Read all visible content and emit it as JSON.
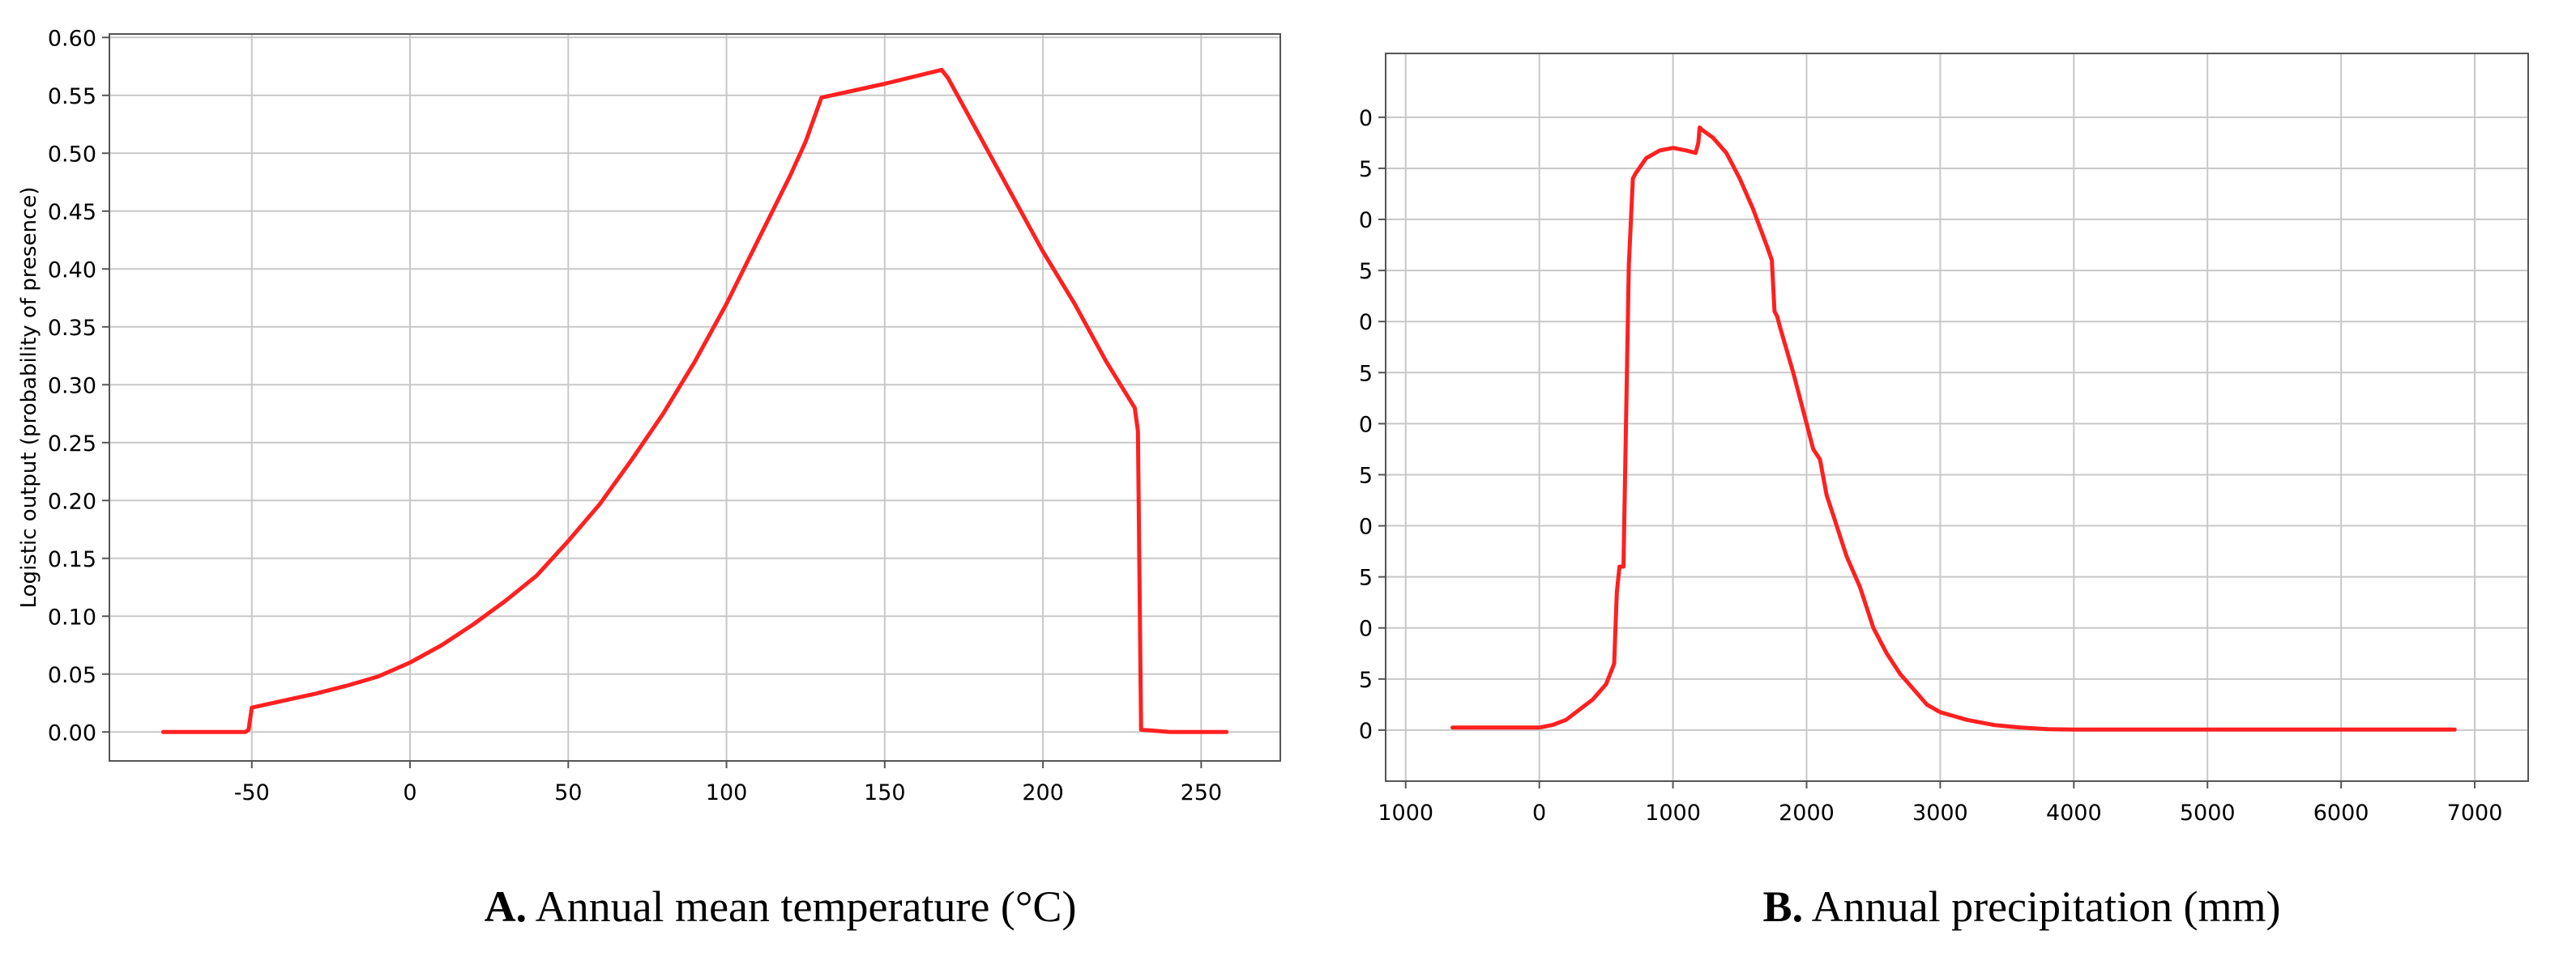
{
  "colors": {
    "series": "#ff2020",
    "grid": "#c8c8c8",
    "frame": "#555555"
  },
  "chart_data": [
    {
      "type": "line",
      "panel_label": "A.",
      "caption": "Annual mean temperature (°C)",
      "title": "",
      "xlabel": "",
      "ylabel": "Logistic output (probability of presence)",
      "xlim": [
        -95,
        275
      ],
      "ylim": [
        -0.025,
        0.603
      ],
      "xticks": [
        -50,
        0,
        50,
        100,
        150,
        200,
        250
      ],
      "xtick_labels": [
        "-50",
        "0",
        "50",
        "100",
        "150",
        "200",
        "250"
      ],
      "yticks": [
        0,
        0.05,
        0.1,
        0.15,
        0.2,
        0.25,
        0.3,
        0.35,
        0.4,
        0.45,
        0.5,
        0.55,
        0.6
      ],
      "ytick_labels": [
        "0.00",
        "0.05",
        "0.10",
        "0.15",
        "0.20",
        "0.25",
        "0.30",
        "0.35",
        "0.40",
        "0.45",
        "0.50",
        "0.55",
        "0.60"
      ],
      "grid": true,
      "series": [
        {
          "name": "response",
          "x": [
            -78,
            -52,
            -51,
            -50,
            -40,
            -30,
            -20,
            -10,
            0,
            10,
            20,
            30,
            40,
            50,
            60,
            70,
            80,
            90,
            100,
            110,
            120,
            125,
            130,
            150,
            168,
            170,
            180,
            190,
            200,
            210,
            220,
            229,
            230,
            231,
            240,
            258
          ],
          "y": [
            0.0,
            0.0,
            0.002,
            0.021,
            0.027,
            0.033,
            0.04,
            0.048,
            0.06,
            0.075,
            0.093,
            0.113,
            0.135,
            0.165,
            0.197,
            0.235,
            0.275,
            0.32,
            0.37,
            0.425,
            0.48,
            0.51,
            0.548,
            0.56,
            0.572,
            0.565,
            0.515,
            0.465,
            0.415,
            0.37,
            0.32,
            0.28,
            0.26,
            0.002,
            0.0,
            0.0
          ]
        }
      ]
    },
    {
      "type": "line",
      "panel_label": "B.",
      "caption": "Annual precipitation (mm)",
      "title": "",
      "xlabel": "",
      "ylabel": "",
      "xlim": [
        -1150,
        7400
      ],
      "ylim": [
        -1.0,
        13.25
      ],
      "xticks": [
        -1000,
        0,
        1000,
        2000,
        3000,
        4000,
        5000,
        6000,
        7000
      ],
      "xtick_labels": [
        "1000",
        "0",
        "1000",
        "2000",
        "3000",
        "4000",
        "5000",
        "6000",
        "7000"
      ],
      "yticks": [
        0,
        1,
        2,
        3,
        4,
        5,
        6,
        7,
        8,
        9,
        10,
        11,
        12
      ],
      "ytick_labels": [
        "0",
        "5",
        "0",
        "5",
        "0",
        "5",
        "0",
        "5",
        "0",
        "5",
        "0",
        "5",
        "0"
      ],
      "grid": true,
      "series": [
        {
          "name": "response",
          "x": [
            -650,
            0,
            100,
            200,
            300,
            400,
            500,
            560,
            580,
            600,
            630,
            670,
            700,
            720,
            800,
            900,
            1000,
            1100,
            1170,
            1190,
            1200,
            1220,
            1300,
            1400,
            1500,
            1600,
            1700,
            1740,
            1760,
            1780,
            1800,
            1900,
            2000,
            2050,
            2100,
            2150,
            2200,
            2300,
            2400,
            2500,
            2600,
            2700,
            2800,
            2900,
            3000,
            3200,
            3400,
            3600,
            3800,
            4000,
            5000,
            6000,
            6850
          ],
          "y": [
            0.05,
            0.05,
            0.1,
            0.2,
            0.4,
            0.6,
            0.9,
            1.3,
            2.7,
            3.2,
            3.2,
            9.1,
            10.8,
            10.9,
            11.2,
            11.35,
            11.4,
            11.35,
            11.3,
            11.5,
            11.8,
            11.75,
            11.6,
            11.3,
            10.8,
            10.2,
            9.5,
            9.2,
            8.2,
            8.1,
            7.9,
            7.0,
            6.0,
            5.5,
            5.3,
            4.6,
            4.2,
            3.4,
            2.8,
            2.0,
            1.5,
            1.1,
            0.8,
            0.5,
            0.35,
            0.2,
            0.1,
            0.05,
            0.02,
            0.01,
            0.01,
            0.01,
            0.01
          ]
        }
      ]
    }
  ]
}
